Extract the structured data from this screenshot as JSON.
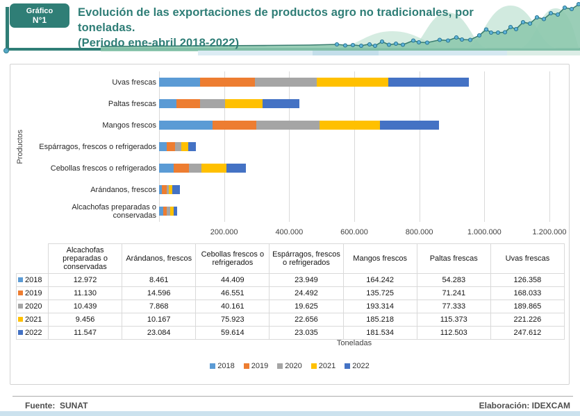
{
  "header": {
    "badge_line1": "Gráfico",
    "badge_line2": "N°1",
    "title_line1": "Evolución de las exportaciones de productos agro no tradicionales, por toneladas.",
    "title_line2": "(Periodo ene-abril 2018-2022)"
  },
  "colors": {
    "accent_teal": "#2F7E76",
    "header_strip_blue": "#C3DEEA",
    "bottom_strip_blue": "#CCE2EE",
    "panel_border": "#D2D2D2",
    "series_2018": "#5B9BD5",
    "series_2019": "#ED7D31",
    "series_2020": "#A5A5A5",
    "series_2021": "#FFC000",
    "series_2022": "#4472C4"
  },
  "chart_data": {
    "type": "bar",
    "orientation": "horizontal",
    "stacked": true,
    "title": "Evolución de las exportaciones de productos agro no tradicionales, por toneladas. (Periodo ene-abril 2018-2022)",
    "ylabel": "Productos",
    "xlabel": "Toneladas",
    "xlim": [
      0,
      1200000
    ],
    "grid": true,
    "legend_position": "bottom",
    "xtick_labels": [
      "200.000",
      "400.000",
      "600.000",
      "800.000",
      "1.000.000",
      "1.200.000"
    ],
    "xtick_values": [
      200000,
      400000,
      600000,
      800000,
      1000000,
      1200000
    ],
    "categories": [
      "Uvas frescas",
      "Paltas frescas",
      "Mangos frescos",
      "Espárragos, frescos o refrigerados",
      "Cebollas frescos o refrigerados",
      "Arándanos, frescos",
      "Alcachofas preparadas o conservadas"
    ],
    "series": [
      {
        "name": "2018",
        "color": "#5B9BD5",
        "values": [
          126358,
          54283,
          164242,
          23949,
          44409,
          8461,
          12972
        ]
      },
      {
        "name": "2019",
        "color": "#ED7D31",
        "values": [
          168033,
          71241,
          135725,
          24492,
          46551,
          14596,
          11130
        ]
      },
      {
        "name": "2020",
        "color": "#A5A5A5",
        "values": [
          189865,
          77333,
          193314,
          19625,
          40161,
          7868,
          10439
        ]
      },
      {
        "name": "2021",
        "color": "#FFC000",
        "values": [
          221226,
          115373,
          185218,
          22656,
          75923,
          10167,
          9456
        ]
      },
      {
        "name": "2022",
        "color": "#4472C4",
        "values": [
          247612,
          112503,
          181534,
          23035,
          59614,
          23084,
          11547
        ]
      }
    ]
  },
  "table": {
    "columns": [
      "Alcachofas preparadas o conservadas",
      "Arándanos, frescos",
      "Cebollas frescos o refrigerados",
      "Espárragos, frescos o refrigerados",
      "Mangos frescos",
      "Paltas frescas",
      "Uvas frescas"
    ],
    "rows": [
      {
        "year": "2018",
        "color": "#5B9BD5",
        "values": [
          "12.972",
          "8.461",
          "44.409",
          "23.949",
          "164.242",
          "54.283",
          "126.358"
        ]
      },
      {
        "year": "2019",
        "color": "#ED7D31",
        "values": [
          "11.130",
          "14.596",
          "46.551",
          "24.492",
          "135.725",
          "71.241",
          "168.033"
        ]
      },
      {
        "year": "2020",
        "color": "#A5A5A5",
        "values": [
          "10.439",
          "7.868",
          "40.161",
          "19.625",
          "193.314",
          "77.333",
          "189.865"
        ]
      },
      {
        "year": "2021",
        "color": "#FFC000",
        "values": [
          "9.456",
          "10.167",
          "75.923",
          "22.656",
          "185.218",
          "115.373",
          "221.226"
        ]
      },
      {
        "year": "2022",
        "color": "#4472C4",
        "values": [
          "11.547",
          "23.084",
          "59.614",
          "23.035",
          "181.534",
          "112.503",
          "247.612"
        ]
      }
    ]
  },
  "footer": {
    "source_label": "Fuente:  SUNAT",
    "elaboration_label": "Elaboración: IDEXCAM"
  }
}
